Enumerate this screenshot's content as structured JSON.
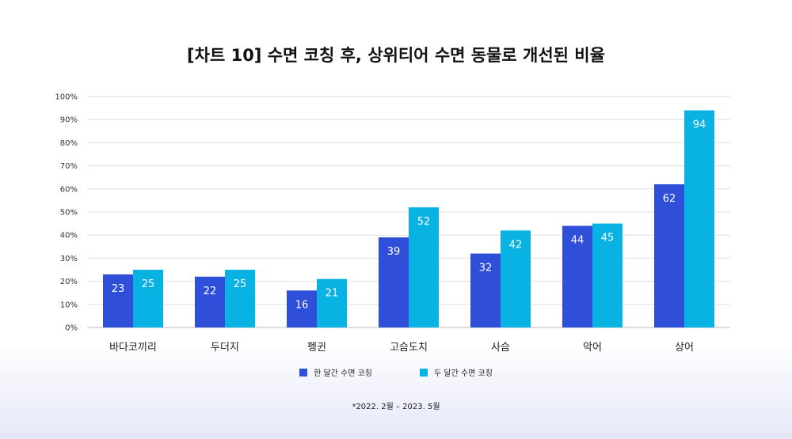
{
  "chart_data": {
    "type": "bar",
    "title": "[차트 10] 수면 코칭 후, 상위티어 수면 동물로 개선된 비율",
    "categories": [
      "바다코끼리",
      "두더지",
      "펭귄",
      "고슴도치",
      "사슴",
      "악어",
      "상어"
    ],
    "series": [
      {
        "name": "한 달간 수면 코칭",
        "color": "#2f4fd8",
        "values": [
          23,
          22,
          16,
          39,
          32,
          44,
          62
        ]
      },
      {
        "name": "두 달간 수면 코칭",
        "color": "#08b2e3",
        "values": [
          25,
          25,
          21,
          52,
          42,
          45,
          94
        ]
      }
    ],
    "ylim": [
      0,
      100
    ],
    "yticks": [
      "0%",
      "10%",
      "20%",
      "30%",
      "40%",
      "50%",
      "60%",
      "70%",
      "80%",
      "90%",
      "100%"
    ],
    "grid": true,
    "legend_position": "bottom",
    "footnote": "*2022. 2월 – 2023. 5월"
  }
}
